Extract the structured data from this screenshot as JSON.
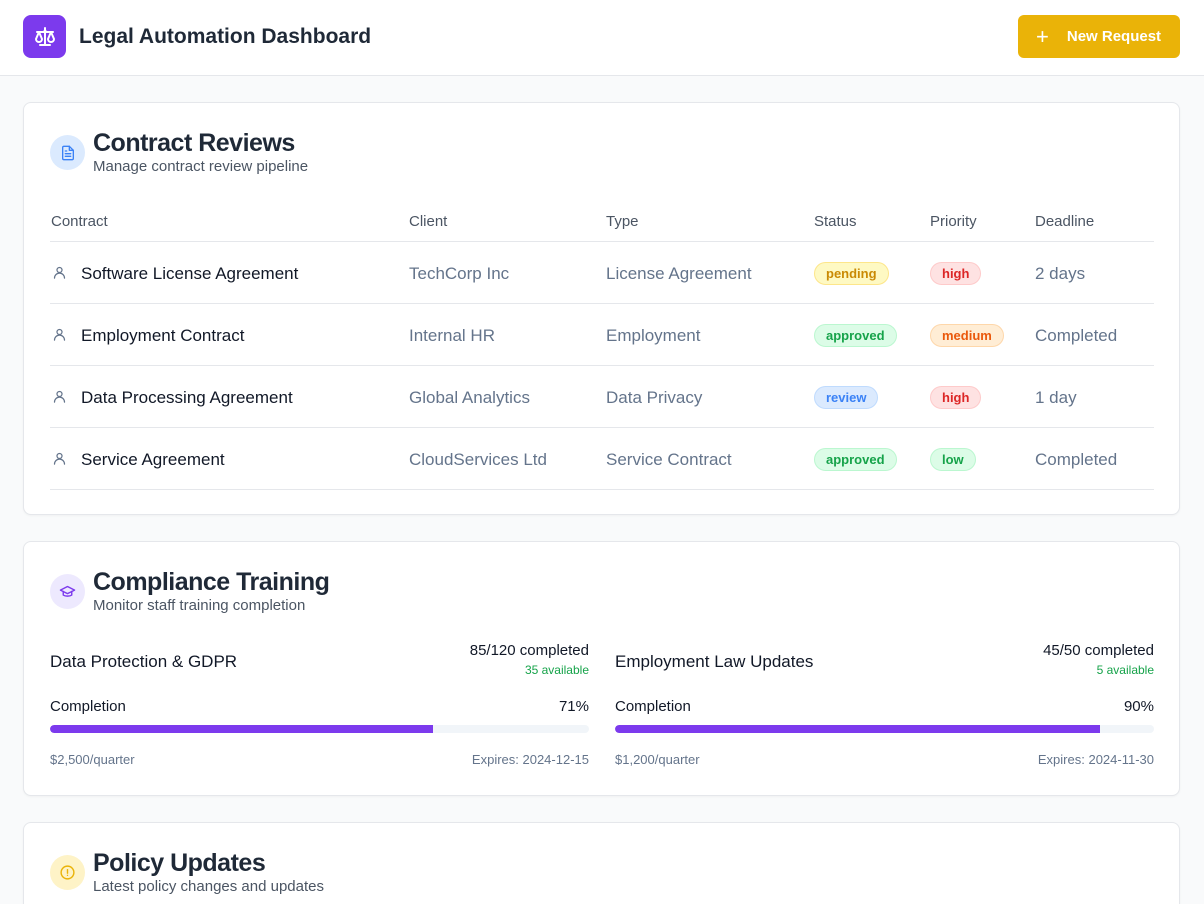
{
  "header": {
    "app_title": "Legal Automation Dashboard",
    "logo_icon": "scale-icon",
    "new_request_label": "New Request",
    "accent": "#7c3aed",
    "button_color": "#eab308"
  },
  "contracts": {
    "title": "Contract Reviews",
    "subtitle": "Manage contract review pipeline",
    "icon": "document-icon",
    "columns": [
      "Contract",
      "Client",
      "Type",
      "Status",
      "Priority",
      "Deadline"
    ],
    "rows": [
      {
        "name": "Software License Agreement",
        "client": "TechCorp Inc",
        "type": "License Agreement",
        "status": "pending",
        "priority": "high",
        "deadline": "2 days"
      },
      {
        "name": "Employment Contract",
        "client": "Internal HR",
        "type": "Employment",
        "status": "approved",
        "priority": "medium",
        "deadline": "Completed"
      },
      {
        "name": "Data Processing Agreement",
        "client": "Global Analytics",
        "type": "Data Privacy",
        "status": "review",
        "priority": "high",
        "deadline": "1 day"
      },
      {
        "name": "Service Agreement",
        "client": "CloudServices Ltd",
        "type": "Service Contract",
        "status": "approved",
        "priority": "low",
        "deadline": "Completed"
      }
    ]
  },
  "training": {
    "title": "Compliance Training",
    "subtitle": "Monitor staff training completion",
    "icon": "graduation-cap-icon",
    "completion_label": "Completion",
    "courses": [
      {
        "name": "Data Protection & GDPR",
        "count": "85/120 completed",
        "available": "35 available",
        "percent": "71%",
        "fill": 71,
        "cost": "$2,500/quarter",
        "expires": "Expires: 2024-12-15"
      },
      {
        "name": "Employment Law Updates",
        "count": "45/50 completed",
        "available": "5 available",
        "percent": "90%",
        "fill": 90,
        "cost": "$1,200/quarter",
        "expires": "Expires: 2024-11-30"
      }
    ]
  },
  "policy": {
    "title": "Policy Updates",
    "subtitle": "Latest policy changes and updates",
    "icon": "alert-circle-icon"
  }
}
